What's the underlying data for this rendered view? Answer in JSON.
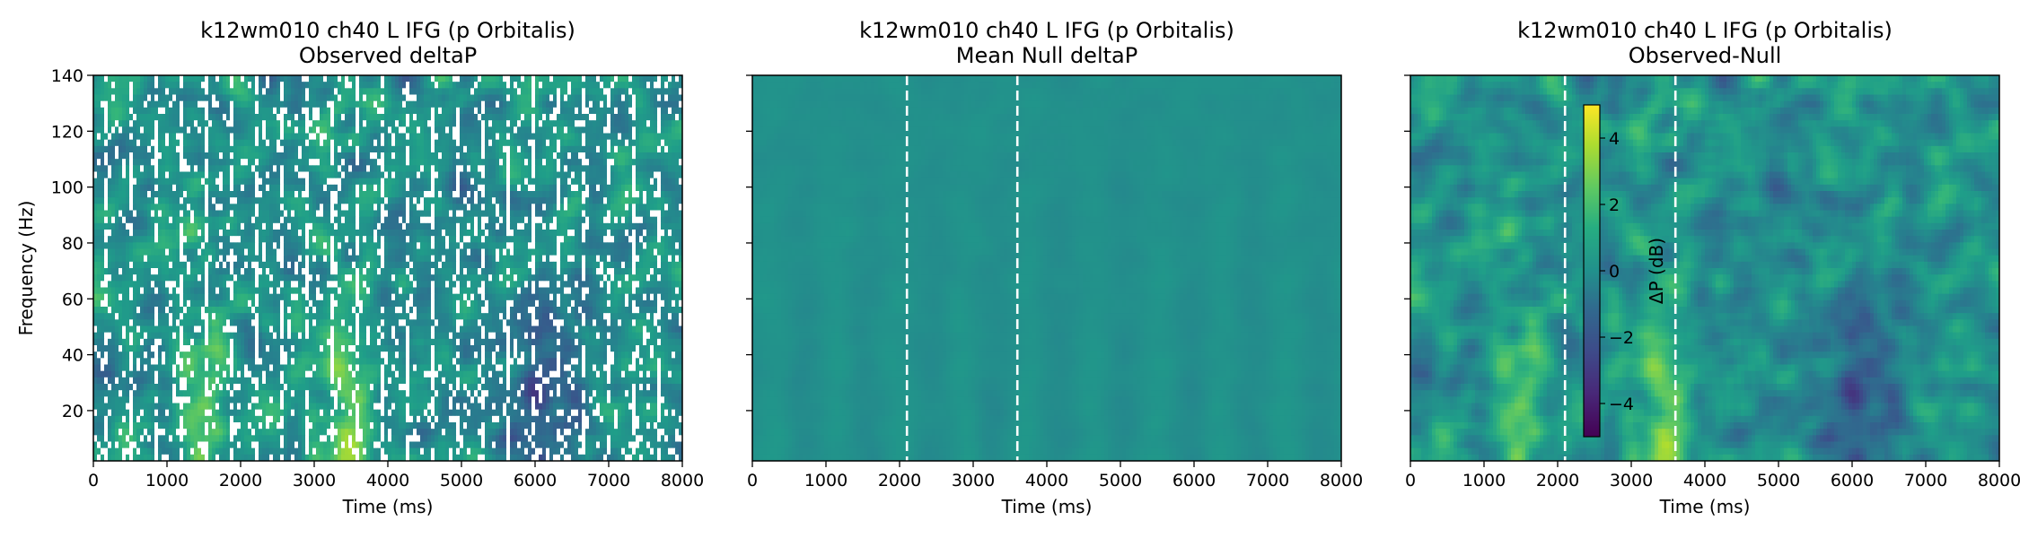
{
  "chart_data": [
    {
      "type": "heatmap",
      "title": "k12wm010 ch40 L IFG (p Orbitalis)",
      "subtitle": "Observed deltaP",
      "xlabel": "Time (ms)",
      "ylabel": "Frequency (Hz)",
      "xlim": [
        0,
        8000
      ],
      "ylim": [
        2,
        140
      ],
      "xticks": [
        "0",
        "1000",
        "2000",
        "3000",
        "4000",
        "5000",
        "6000",
        "7000",
        "8000"
      ],
      "yticks": [
        "20",
        "40",
        "60",
        "80",
        "100",
        "120",
        "140"
      ],
      "colormap": "viridis",
      "clim": [
        -5,
        5
      ],
      "masked_nonsignificant": true
    },
    {
      "type": "heatmap",
      "title": "k12wm010 ch40 L IFG (p Orbitalis)",
      "subtitle": "Mean Null deltaP",
      "xlabel": "Time (ms)",
      "xlim": [
        0,
        8000
      ],
      "ylim": [
        2,
        140
      ],
      "xticks": [
        "0",
        "1000",
        "2000",
        "3000",
        "4000",
        "5000",
        "6000",
        "7000",
        "8000"
      ],
      "colormap": "viridis",
      "clim": [
        -5,
        5
      ],
      "vlines_ms": [
        2100,
        3600
      ]
    },
    {
      "type": "heatmap",
      "title": "k12wm010 ch40 L IFG (p Orbitalis)",
      "subtitle": "Observed-Null",
      "xlabel": "Time (ms)",
      "xlim": [
        0,
        8000
      ],
      "ylim": [
        2,
        140
      ],
      "xticks": [
        "0",
        "1000",
        "2000",
        "3000",
        "4000",
        "5000",
        "6000",
        "7000",
        "8000"
      ],
      "colormap": "viridis",
      "clim": [
        -5,
        5
      ],
      "vlines_ms": [
        2100,
        3600
      ],
      "colorbar": {
        "label": "ΔP (dB)",
        "ticks": [
          "4",
          "2",
          "0",
          "−2",
          "−4"
        ]
      }
    }
  ]
}
